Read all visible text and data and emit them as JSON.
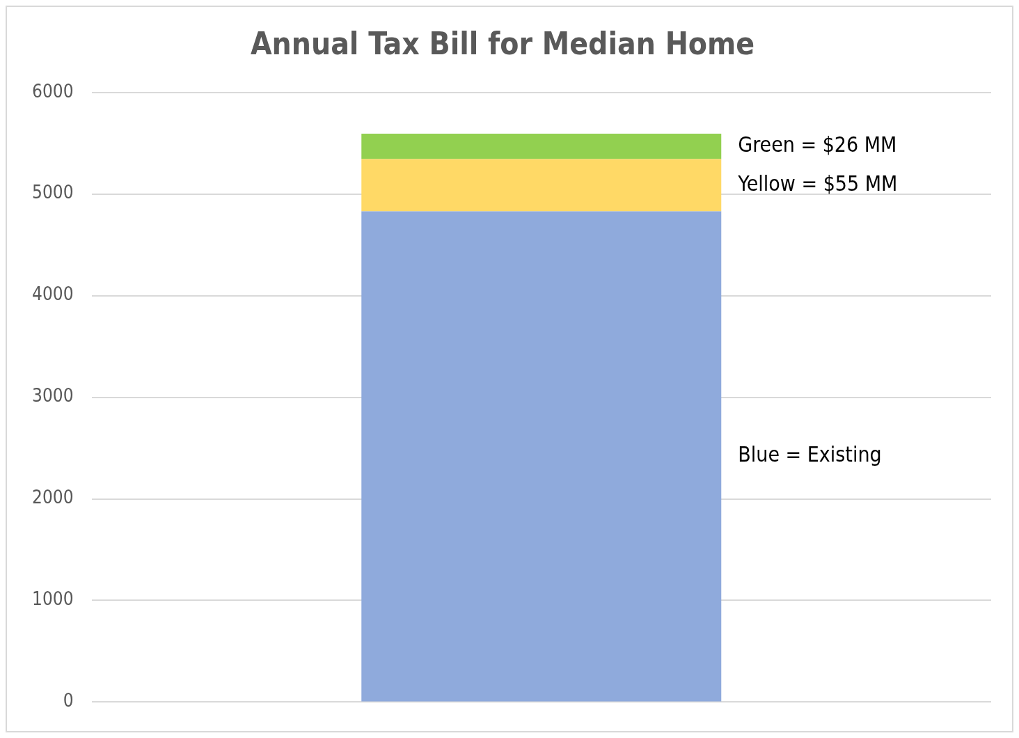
{
  "chart_data": {
    "type": "bar",
    "title": "Annual Tax Bill for Median Home",
    "categories": [
      null
    ],
    "stacked": true,
    "series": [
      {
        "name": "Blue = Existing",
        "color": "#8faadc",
        "values": [
          4830
        ]
      },
      {
        "name": "Yellow = $55 MM",
        "color": "#ffd966",
        "values": [
          515
        ]
      },
      {
        "name": "Green = $26 MM",
        "color": "#92d050",
        "values": [
          250
        ]
      }
    ],
    "ylim": [
      0,
      6000
    ],
    "yticks": [
      0,
      1000,
      2000,
      3000,
      4000,
      5000,
      6000
    ],
    "grid": "y",
    "legend": false,
    "tick_labels": "y"
  }
}
